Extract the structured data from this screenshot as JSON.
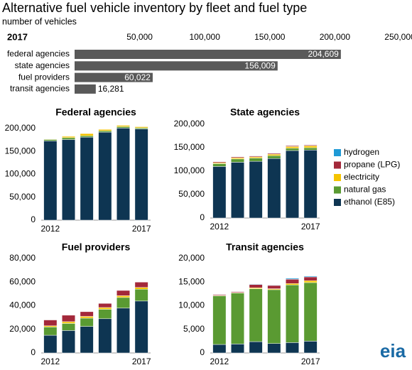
{
  "source_logo": "eia",
  "chart_data": [
    {
      "type": "hbar",
      "title": "Alternative fuel vehicle inventory by fleet and fuel type",
      "subtitle": "number of vehicles",
      "label": "2017",
      "categories": [
        "federal agencies",
        "state agencies",
        "fuel providers",
        "transit agencies"
      ],
      "values": [
        204609,
        156009,
        60022,
        16281
      ],
      "value_labels": [
        "204,609",
        "156,009",
        "60,022",
        "16,281"
      ],
      "color": "#595959",
      "xlim": [
        0,
        250000
      ],
      "xticks": [
        {
          "value": 50000,
          "label": "50,000"
        },
        {
          "value": 100000,
          "label": "100,000"
        },
        {
          "value": 150000,
          "label": "150,000"
        },
        {
          "value": 200000,
          "label": "200,000"
        },
        {
          "value": 250000,
          "label": "250,000"
        }
      ]
    },
    {
      "type": "stacked_bar",
      "title": "Federal agencies",
      "categories": [
        "2012",
        null,
        null,
        null,
        null,
        "2017"
      ],
      "ylim": [
        0,
        210000
      ],
      "yticks": [
        0,
        {
          "value": 50000,
          "label": "50,000"
        },
        {
          "value": 100000,
          "label": "100,000"
        },
        {
          "value": 150000,
          "label": "150,000"
        },
        {
          "value": 200000,
          "label": "200,000"
        }
      ],
      "series": [
        {
          "name": "ethanol (E85)",
          "color": "#0e3552",
          "values": [
            173000,
            176000,
            181000,
            192000,
            201000,
            199000
          ]
        },
        {
          "name": "natural gas",
          "color": "#5a9a32",
          "values": [
            3000,
            4000,
            3000,
            3000,
            3000,
            2500
          ]
        },
        {
          "name": "electricity",
          "color": "#f5c400",
          "values": [
            1000,
            3000,
            5000,
            3000,
            3000,
            2500
          ]
        },
        {
          "name": "propane (LPG)",
          "color": "#a3283a",
          "values": [
            500,
            500,
            500,
            500,
            500,
            500
          ]
        },
        {
          "name": "hydrogen",
          "color": "#1f9ad6",
          "values": [
            100,
            100,
            100,
            100,
            100,
            100
          ]
        }
      ]
    },
    {
      "type": "stacked_bar",
      "title": "State agencies",
      "legend": "right",
      "categories": [
        "2012",
        null,
        null,
        null,
        null,
        "2017"
      ],
      "ylim": [
        0,
        200000
      ],
      "yticks": [
        0,
        {
          "value": 50000,
          "label": "50,000"
        },
        {
          "value": 100000,
          "label": "100,000"
        },
        {
          "value": 150000,
          "label": "150,000"
        },
        {
          "value": 200000,
          "label": "200,000"
        }
      ],
      "series": [
        {
          "name": "ethanol (E85)",
          "color": "#0e3552",
          "values": [
            110000,
            119000,
            121000,
            127000,
            144000,
            145000
          ]
        },
        {
          "name": "natural gas",
          "color": "#5a9a32",
          "values": [
            6000,
            7000,
            7000,
            6000,
            5000,
            5000
          ]
        },
        {
          "name": "electricity",
          "color": "#f5c400",
          "values": [
            2000,
            2500,
            2500,
            3000,
            3500,
            4000
          ]
        },
        {
          "name": "propane (LPG)",
          "color": "#a3283a",
          "values": [
            2000,
            2000,
            2000,
            2000,
            2000,
            1900
          ]
        },
        {
          "name": "hydrogen",
          "color": "#1f9ad6",
          "values": [
            100,
            100,
            100,
            100,
            100,
            100
          ]
        }
      ]
    },
    {
      "type": "stacked_bar",
      "title": "Fuel providers",
      "categories": [
        "2012",
        null,
        null,
        null,
        null,
        "2017"
      ],
      "ylim": [
        0,
        80000
      ],
      "yticks": [
        0,
        {
          "value": 20000,
          "label": "20,000"
        },
        {
          "value": 40000,
          "label": "40,000"
        },
        {
          "value": 60000,
          "label": "60,000"
        },
        {
          "value": 80000,
          "label": "80,000"
        }
      ],
      "series": [
        {
          "name": "ethanol (E85)",
          "color": "#0e3552",
          "values": [
            15000,
            19000,
            22500,
            29000,
            38000,
            44000
          ]
        },
        {
          "name": "natural gas",
          "color": "#5a9a32",
          "values": [
            7000,
            6000,
            7000,
            8000,
            9000,
            10000
          ]
        },
        {
          "name": "electricity",
          "color": "#f5c400",
          "values": [
            1000,
            1500,
            1500,
            1500,
            1500,
            1500
          ]
        },
        {
          "name": "propane (LPG)",
          "color": "#a3283a",
          "values": [
            5000,
            5500,
            4000,
            3500,
            4500,
            4500
          ]
        },
        {
          "name": "hydrogen",
          "color": "#1f9ad6",
          "values": [
            100,
            100,
            100,
            100,
            100,
            100
          ]
        }
      ]
    },
    {
      "type": "stacked_bar",
      "title": "Transit agencies",
      "categories": [
        "2012",
        null,
        null,
        null,
        null,
        "2017"
      ],
      "ylim": [
        0,
        20000
      ],
      "yticks": [
        0,
        {
          "value": 5000,
          "label": "5,000"
        },
        {
          "value": 10000,
          "label": "10,000"
        },
        {
          "value": 15000,
          "label": "15,000"
        },
        {
          "value": 20000,
          "label": "20,000"
        }
      ],
      "series": [
        {
          "name": "ethanol (E85)",
          "color": "#0e3552",
          "values": [
            1800,
            1900,
            2400,
            2000,
            2200,
            2500
          ]
        },
        {
          "name": "natural gas",
          "color": "#5a9a32",
          "values": [
            10300,
            10800,
            11200,
            11400,
            12200,
            12400
          ]
        },
        {
          "name": "electricity",
          "color": "#f5c400",
          "values": [
            100,
            100,
            200,
            200,
            300,
            400
          ]
        },
        {
          "name": "propane (LPG)",
          "color": "#a3283a",
          "values": [
            200,
            200,
            700,
            700,
            900,
            800
          ]
        },
        {
          "name": "hydrogen",
          "color": "#1f9ad6",
          "values": [
            50,
            50,
            100,
            100,
            200,
            181
          ]
        }
      ]
    }
  ]
}
